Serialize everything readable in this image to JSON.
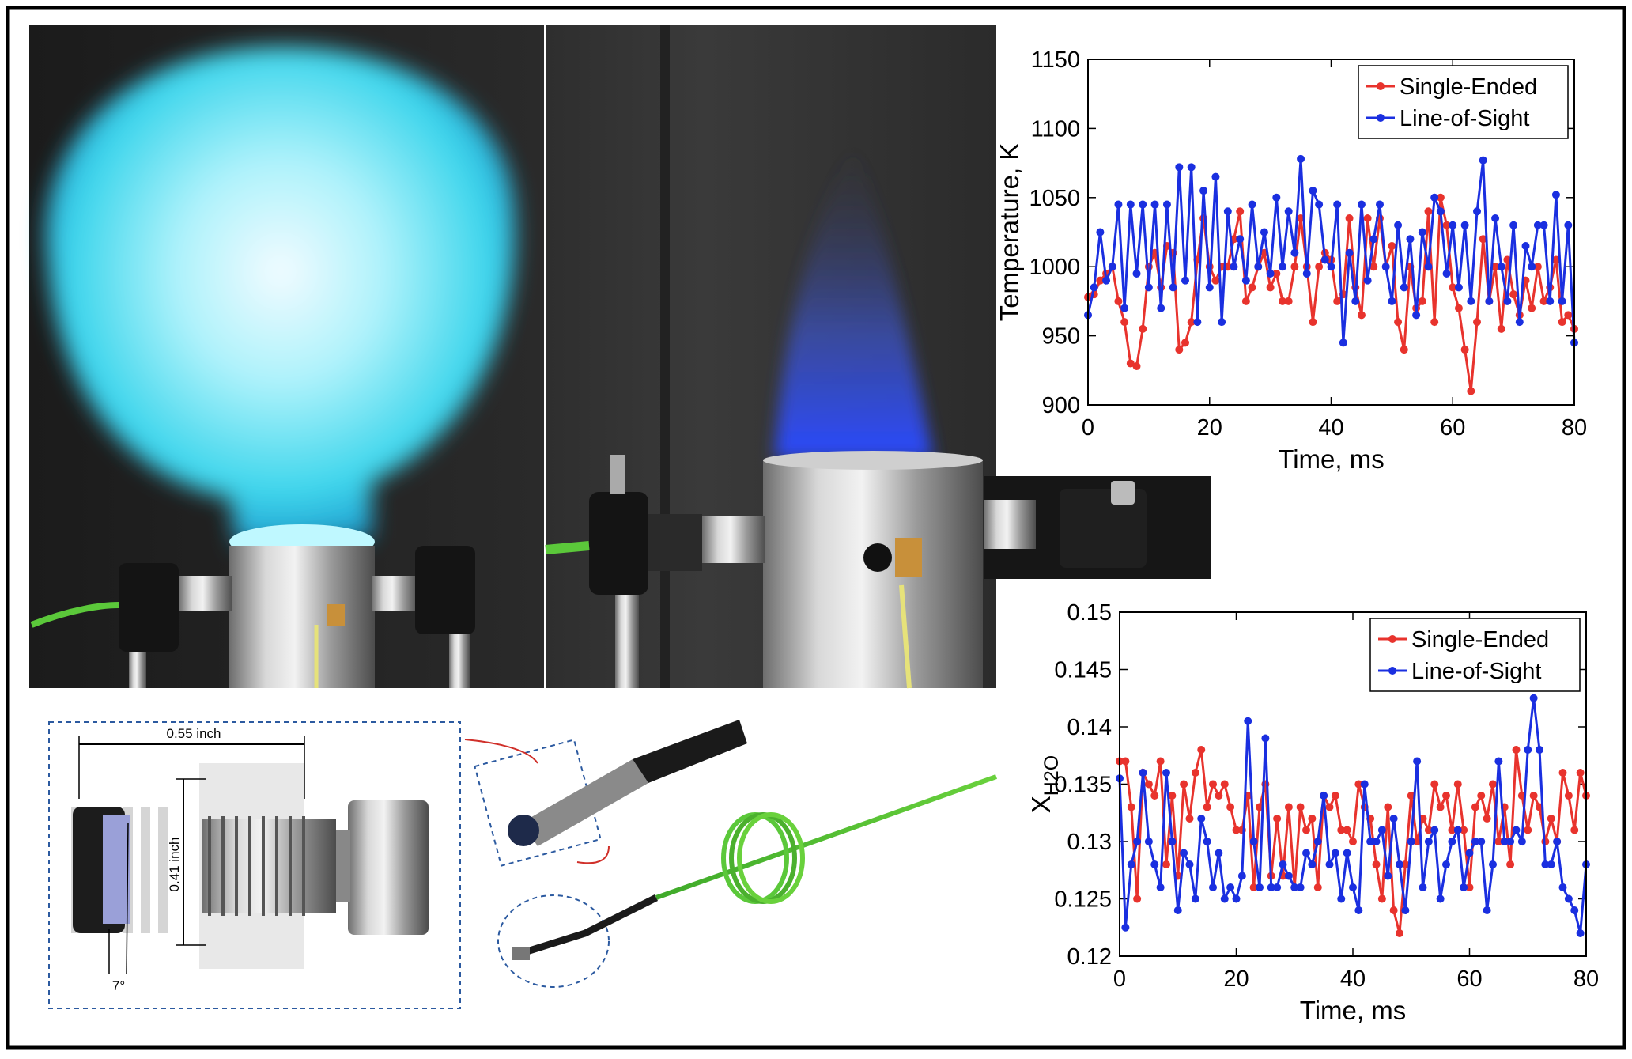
{
  "chart_data": [
    {
      "type": "line",
      "x_label": "Time, ms",
      "y_label": "Temperature, K",
      "legend": "northeast",
      "x": [
        0,
        1,
        2,
        3,
        4,
        5,
        6,
        7,
        8,
        9,
        10,
        11,
        12,
        13,
        14,
        15,
        16,
        17,
        18,
        19,
        20,
        21,
        22,
        23,
        24,
        25,
        26,
        27,
        28,
        29,
        30,
        31,
        32,
        33,
        34,
        35,
        36,
        37,
        38,
        39,
        40,
        41,
        42,
        43,
        44,
        45,
        46,
        47,
        48,
        49,
        50,
        51,
        52,
        53,
        54,
        55,
        56,
        57,
        58,
        59,
        60,
        61,
        62,
        63,
        64,
        65,
        66,
        67,
        68,
        69,
        70,
        71,
        72,
        73,
        74,
        75,
        76,
        77,
        78,
        79,
        80
      ],
      "xlim": [
        0,
        80
      ],
      "xticks": [
        0,
        20,
        40,
        60,
        80
      ],
      "ylim": [
        900,
        1150
      ],
      "yticks": [
        900,
        950,
        1000,
        1050,
        1100,
        1150
      ],
      "series": [
        {
          "name": "Single-Ended",
          "color": "#e8332d",
          "values": [
            978,
            980,
            990,
            995,
            1000,
            975,
            960,
            930,
            928,
            955,
            1000,
            1010,
            985,
            1015,
            1010,
            940,
            945,
            960,
            1005,
            1035,
            1000,
            990,
            1000,
            1000,
            1020,
            1040,
            975,
            985,
            1000,
            1010,
            985,
            995,
            975,
            975,
            1000,
            1035,
            1000,
            960,
            1000,
            1010,
            1005,
            975,
            980,
            1035,
            985,
            965,
            1035,
            1000,
            1035,
            1000,
            1015,
            960,
            940,
            1000,
            970,
            975,
            1040,
            960,
            1050,
            1030,
            985,
            970,
            940,
            910,
            960,
            1020,
            975,
            1000,
            955,
            1005,
            980,
            965,
            990,
            970,
            1000,
            975,
            985,
            1005,
            960,
            965,
            955
          ]
        },
        {
          "name": "Line-of-Sight",
          "color": "#1a2fe0",
          "values": [
            965,
            985,
            1025,
            990,
            1000,
            1045,
            970,
            1045,
            995,
            1045,
            985,
            1045,
            970,
            1045,
            985,
            1072,
            990,
            1072,
            960,
            1055,
            985,
            1065,
            960,
            1040,
            1000,
            1020,
            990,
            1045,
            1000,
            1025,
            995,
            1050,
            1000,
            1040,
            1010,
            1078,
            995,
            1055,
            1045,
            1005,
            1000,
            1045,
            945,
            1010,
            975,
            1045,
            990,
            1020,
            1045,
            1000,
            975,
            1030,
            985,
            1020,
            965,
            1025,
            1000,
            1050,
            1040,
            995,
            1030,
            985,
            1030,
            975,
            1040,
            1077,
            975,
            1035,
            1000,
            975,
            1030,
            960,
            1015,
            1000,
            1030,
            1030,
            975,
            1052,
            975,
            1030,
            945
          ]
        }
      ]
    },
    {
      "type": "line",
      "x_label": "Time, ms",
      "y_label": "X",
      "y_label_sub": "H2O",
      "legend": "northeast",
      "x": [
        0,
        1,
        2,
        3,
        4,
        5,
        6,
        7,
        8,
        9,
        10,
        11,
        12,
        13,
        14,
        15,
        16,
        17,
        18,
        19,
        20,
        21,
        22,
        23,
        24,
        25,
        26,
        27,
        28,
        29,
        30,
        31,
        32,
        33,
        34,
        35,
        36,
        37,
        38,
        39,
        40,
        41,
        42,
        43,
        44,
        45,
        46,
        47,
        48,
        49,
        50,
        51,
        52,
        53,
        54,
        55,
        56,
        57,
        58,
        59,
        60,
        61,
        62,
        63,
        64,
        65,
        66,
        67,
        68,
        69,
        70,
        71,
        72,
        73,
        74,
        75,
        76,
        77,
        78,
        79,
        80
      ],
      "xlim": [
        0,
        80
      ],
      "xticks": [
        0,
        20,
        40,
        60,
        80
      ],
      "ylim": [
        0.12,
        0.15
      ],
      "yticks": [
        0.12,
        0.125,
        0.13,
        0.135,
        0.14,
        0.145,
        0.15
      ],
      "series": [
        {
          "name": "Single-Ended",
          "color": "#e8332d",
          "values": [
            0.137,
            0.137,
            0.133,
            0.125,
            0.136,
            0.135,
            0.134,
            0.137,
            0.128,
            0.134,
            0.127,
            0.135,
            0.132,
            0.136,
            0.138,
            0.133,
            0.135,
            0.134,
            0.135,
            0.133,
            0.131,
            0.131,
            0.134,
            0.126,
            0.133,
            0.135,
            0.127,
            0.132,
            0.127,
            0.133,
            0.126,
            0.133,
            0.131,
            0.132,
            0.126,
            0.134,
            0.133,
            0.134,
            0.131,
            0.131,
            0.13,
            0.135,
            0.133,
            0.132,
            0.128,
            0.125,
            0.133,
            0.124,
            0.122,
            0.128,
            0.134,
            0.13,
            0.132,
            0.131,
            0.135,
            0.133,
            0.134,
            0.131,
            0.135,
            0.131,
            0.126,
            0.133,
            0.134,
            0.132,
            0.135,
            0.13,
            0.133,
            0.128,
            0.138,
            0.134,
            0.131,
            0.134,
            0.133,
            0.13,
            0.132,
            0.13,
            0.136,
            0.134,
            0.131,
            0.136,
            0.134
          ]
        },
        {
          "name": "Line-of-Sight",
          "color": "#1a2fe0",
          "values": [
            0.1355,
            0.1225,
            0.128,
            0.13,
            0.136,
            0.13,
            0.128,
            0.126,
            0.136,
            0.13,
            0.124,
            0.129,
            0.128,
            0.125,
            0.132,
            0.13,
            0.126,
            0.129,
            0.125,
            0.126,
            0.125,
            0.127,
            0.1405,
            0.13,
            0.126,
            0.139,
            0.126,
            0.126,
            0.128,
            0.127,
            0.126,
            0.126,
            0.129,
            0.128,
            0.13,
            0.134,
            0.128,
            0.129,
            0.125,
            0.129,
            0.126,
            0.124,
            0.135,
            0.13,
            0.13,
            0.131,
            0.127,
            0.132,
            0.128,
            0.124,
            0.13,
            0.137,
            0.126,
            0.13,
            0.131,
            0.125,
            0.128,
            0.13,
            0.131,
            0.126,
            0.129,
            0.13,
            0.13,
            0.124,
            0.128,
            0.137,
            0.13,
            0.13,
            0.131,
            0.13,
            0.138,
            0.1425,
            0.138,
            0.128,
            0.128,
            0.13,
            0.126,
            0.125,
            0.124,
            0.122,
            0.128
          ]
        }
      ]
    }
  ],
  "diagram": {
    "length": "0.55 inch",
    "diameter": "0.41 inch",
    "angle": "7°"
  }
}
